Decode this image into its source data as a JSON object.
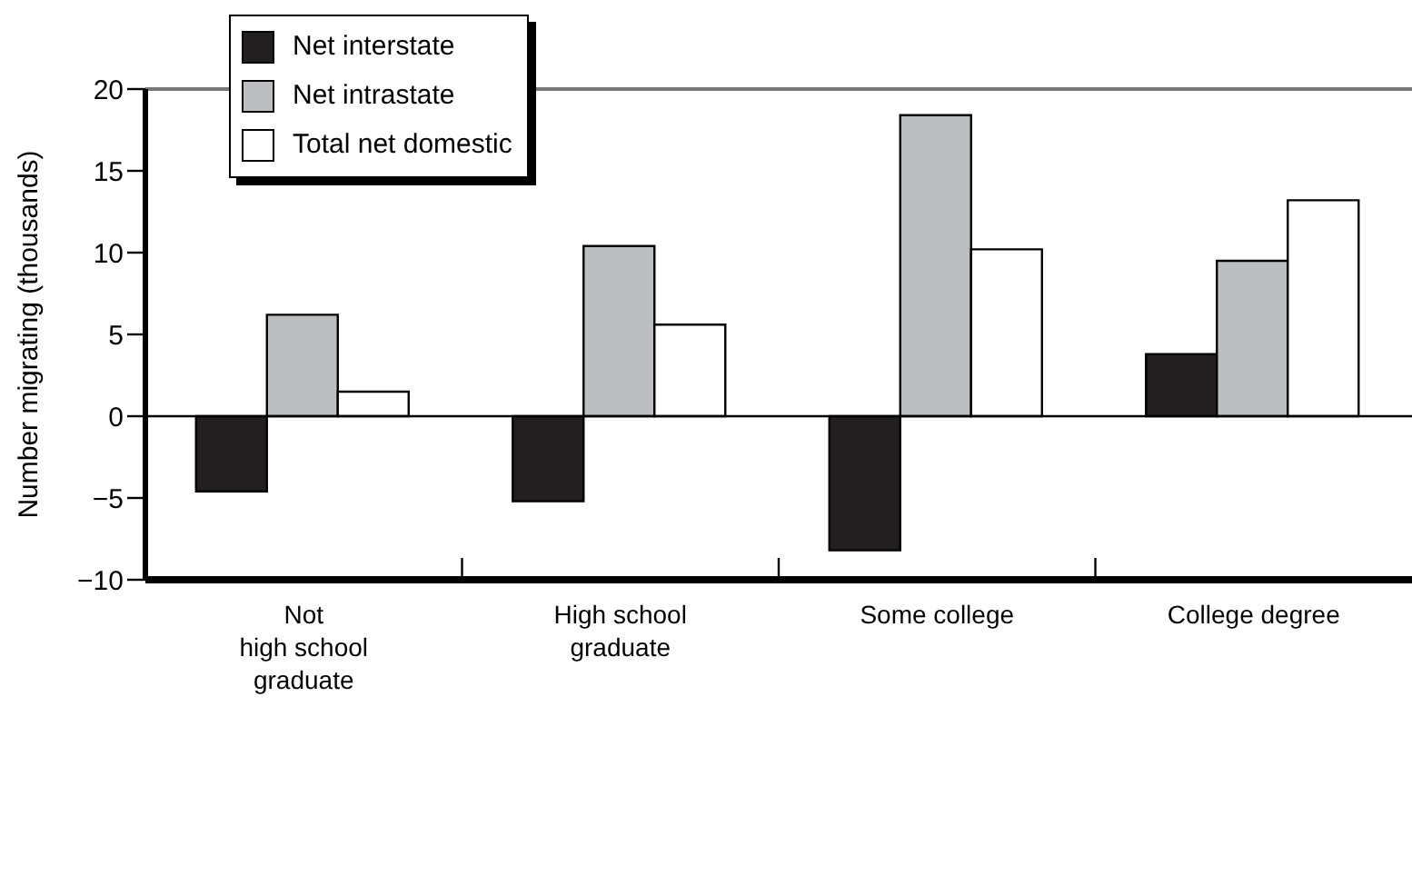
{
  "chart_data": {
    "type": "bar",
    "ylabel": "Number migrating (thousands)",
    "categories": [
      "Not\nhigh school\ngraduate",
      "High school\ngraduate",
      "Some college",
      "College degree"
    ],
    "series": [
      {
        "name": "Net interstate",
        "color": "#231f20",
        "values": [
          -4.6,
          -5.2,
          -8.2,
          3.8
        ]
      },
      {
        "name": "Net intrastate",
        "color": "#bcbec0",
        "values": [
          6.2,
          10.4,
          18.4,
          9.5
        ]
      },
      {
        "name": "Total net domestic",
        "color": "#ffffff",
        "values": [
          1.5,
          5.6,
          10.2,
          13.2
        ]
      }
    ],
    "ylim": [
      -10,
      20
    ],
    "yticks": [
      {
        "value": -10,
        "label": "−10"
      },
      {
        "value": -5,
        "label": "−5"
      },
      0,
      5,
      10,
      15,
      20
    ],
    "ref_lines": [
      {
        "axis": "y",
        "value": 0,
        "color": "#000000"
      }
    ],
    "legend": "top left"
  }
}
